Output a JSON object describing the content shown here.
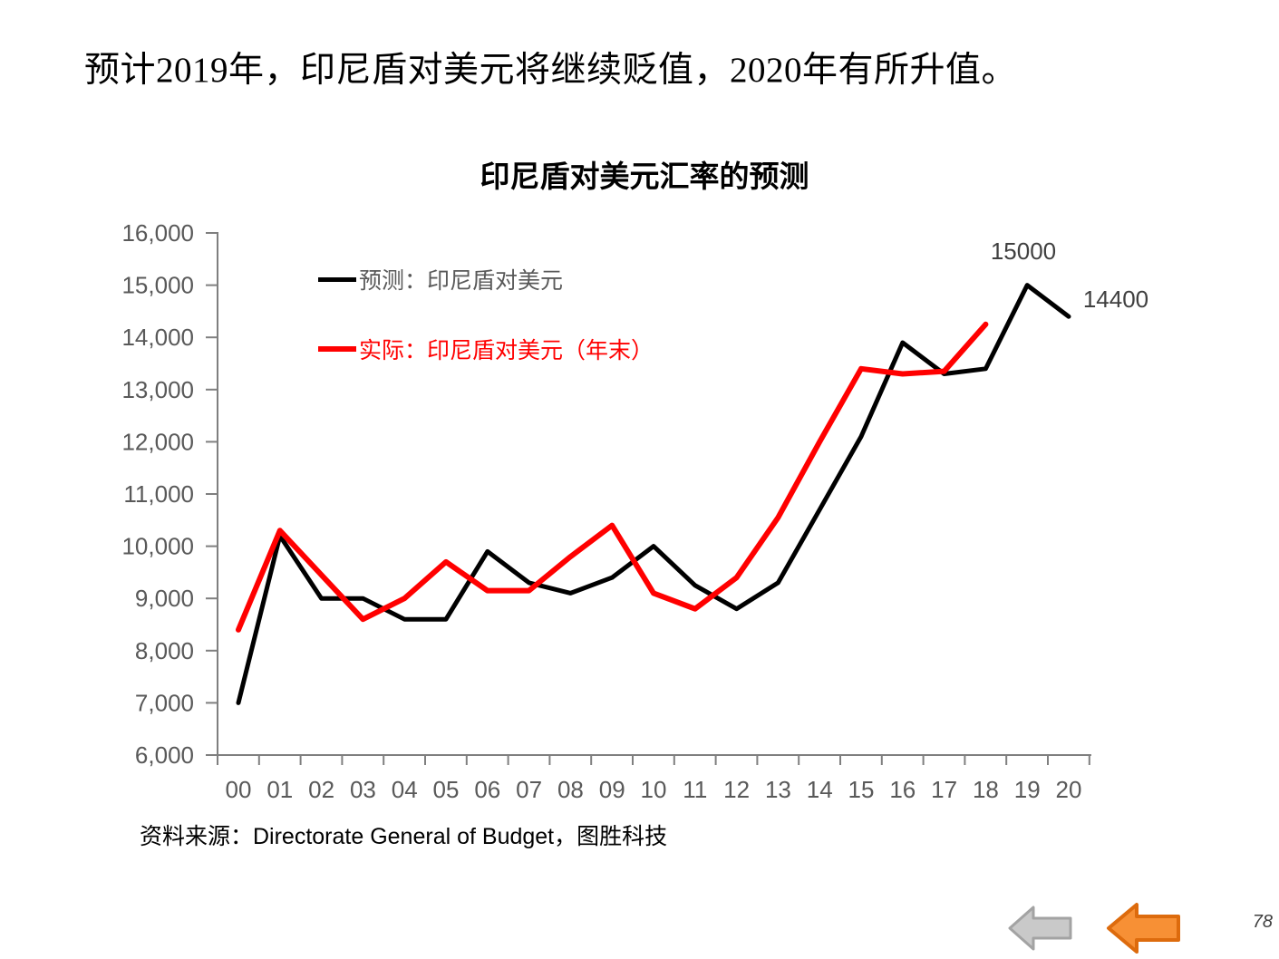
{
  "slide": {
    "title": "预计2019年，印尼盾对美元将继续贬值，2020年有所升值。",
    "source": "资料来源：Directorate General of Budget，图胜科技",
    "page_number": "78"
  },
  "icons": {
    "gray_back_arrow": "left-arrow-icon",
    "orange_back_arrow": "left-arrow-icon"
  },
  "colors": {
    "forecast_line": "#000000",
    "actual_line": "#FF0000",
    "axis": "#7F7F7F",
    "axis_text": "#595959",
    "annotation_text": "#404040",
    "gray_arrow_fill": "#C9C9C9",
    "gray_arrow_stroke": "#A3A3A3",
    "orange_arrow_fill": "#F79035",
    "orange_arrow_stroke": "#DD6B0D"
  },
  "chart_data": {
    "type": "line",
    "title": "印尼盾对美元汇率的预测",
    "xlabel": "",
    "ylabel": "",
    "categories": [
      "00",
      "01",
      "02",
      "03",
      "04",
      "05",
      "06",
      "07",
      "08",
      "09",
      "10",
      "11",
      "12",
      "13",
      "14",
      "15",
      "16",
      "17",
      "18",
      "19",
      "20"
    ],
    "series": [
      {
        "name": "预测：印尼盾对美元",
        "color": "#000000",
        "values": [
          7000,
          10200,
          9000,
          9000,
          8600,
          8600,
          9900,
          9300,
          9100,
          9400,
          10000,
          9250,
          8800,
          9300,
          10700,
          12100,
          13900,
          13300,
          13400,
          15000,
          14400
        ]
      },
      {
        "name": "实际：印尼盾对美元（年末）",
        "color": "#FF0000",
        "values": [
          8400,
          10300,
          9450,
          8600,
          9000,
          9700,
          9150,
          9150,
          9800,
          10400,
          9100,
          8800,
          9400,
          10550,
          12000,
          13400,
          13300,
          13350,
          14250,
          null,
          null
        ]
      }
    ],
    "ylim": [
      6000,
      16000
    ],
    "ytick_step": 1000,
    "ytick_labels": [
      "6,000",
      "7,000",
      "8,000",
      "9,000",
      "10,000",
      "11,000",
      "12,000",
      "13,000",
      "14,000",
      "15,000",
      "16,000"
    ],
    "grid": false,
    "legend_position": "inside-top-left",
    "annotations": [
      {
        "text": "15000",
        "x": "19",
        "y": 15000
      },
      {
        "text": "14400",
        "x": "20",
        "y": 14400
      }
    ]
  }
}
